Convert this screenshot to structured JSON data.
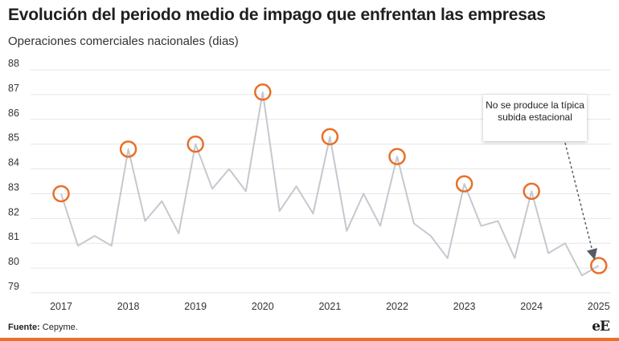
{
  "header": {
    "title": "Evolución del periodo medio de impago que enfrentan las empresas",
    "subtitle": "Operaciones comerciales nacionales (dias)"
  },
  "annotation": {
    "text": "No se produce la típica subida estacional"
  },
  "footer": {
    "source_label": "Fuente:",
    "source_value": "Cepyme.",
    "logo_text": "eE"
  },
  "colors": {
    "line": "#c5c8cf",
    "highlight": "#e8702a",
    "grid": "#e6e6e6",
    "arrow": "#555b66"
  },
  "chart_data": {
    "type": "line",
    "title": "Evolución del periodo medio de impago que enfrentan las empresas",
    "subtitle": "Operaciones comerciales nacionales (dias)",
    "xlabel": "",
    "ylabel": "",
    "ylim": [
      79,
      88
    ],
    "yticks": [
      79,
      80,
      81,
      82,
      83,
      84,
      85,
      86,
      87,
      88
    ],
    "year_labels": [
      "2017",
      "2018",
      "2019",
      "2020",
      "2021",
      "2022",
      "2023",
      "2024",
      "2025"
    ],
    "grid": true,
    "legend": "none",
    "series": [
      {
        "values": [
          83.0,
          80.9,
          81.3,
          80.9,
          84.8,
          81.9,
          82.7,
          81.4,
          85.0,
          83.2,
          84.0,
          83.1,
          87.1,
          82.3,
          83.3,
          82.2,
          85.3,
          81.5,
          83.0,
          81.7,
          84.5,
          81.8,
          81.3,
          80.4,
          83.4,
          81.7,
          81.9,
          80.4,
          83.1,
          80.6,
          81.0,
          79.7,
          80.1
        ]
      }
    ],
    "highlighted_points": [
      0,
      4,
      8,
      12,
      16,
      20,
      24,
      28,
      32
    ]
  }
}
